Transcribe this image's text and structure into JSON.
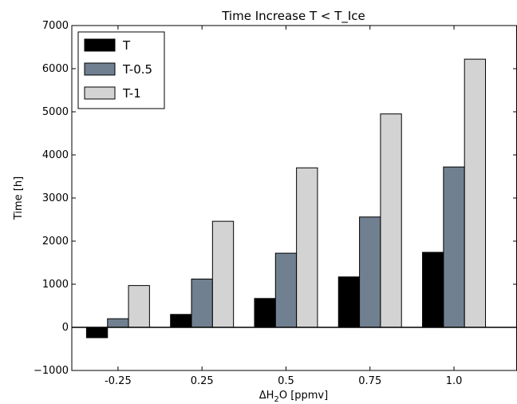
{
  "chart_data": {
    "type": "bar",
    "title": "Time Increase T < T_Ice",
    "xlabel": "ΔH₂O [ppmv]",
    "xlabel_parts": {
      "delta": "ΔH",
      "subscript": "2",
      "rest": "O [ppmv]"
    },
    "ylabel": "Time [h]",
    "categories": [
      "-0.25",
      "0.25",
      "0.5",
      "0.75",
      "1.0"
    ],
    "series": [
      {
        "name": "T",
        "color": "#000000",
        "values": [
          -240,
          300,
          670,
          1170,
          1740
        ]
      },
      {
        "name": "T-0.5",
        "color": "#708090",
        "values": [
          200,
          1120,
          1720,
          2560,
          3720
        ]
      },
      {
        "name": "T-1",
        "color": "#d3d3d3",
        "values": [
          970,
          2460,
          3700,
          4950,
          6220
        ]
      }
    ],
    "ylim": [
      -1000,
      7000
    ],
    "yticks": [
      -1000,
      0,
      1000,
      2000,
      3000,
      4000,
      5000,
      6000,
      7000
    ],
    "ytick_labels": [
      "−1000",
      "0",
      "1000",
      "2000",
      "3000",
      "4000",
      "5000",
      "6000",
      "7000"
    ],
    "grid": false,
    "zero_line": true,
    "legend_position": "top-left"
  }
}
